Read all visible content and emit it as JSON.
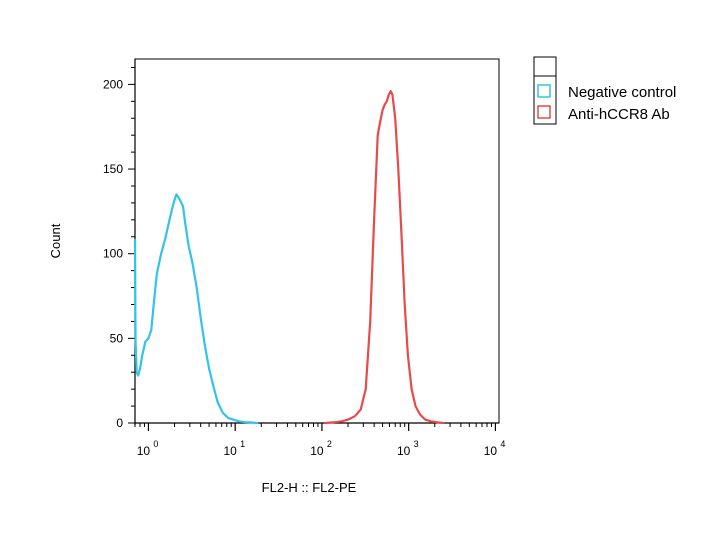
{
  "chart_data": {
    "type": "line",
    "xlabel": "FL2-H :: FL2-PE",
    "ylabel": "Count",
    "x_scale": "log",
    "xlim": [
      0.7,
      11000
    ],
    "ylim": [
      0,
      215
    ],
    "y_ticks": [
      0,
      50,
      100,
      150,
      200
    ],
    "x_ticks": [
      {
        "value": 1,
        "base": "10",
        "exp": "0"
      },
      {
        "value": 10,
        "base": "10",
        "exp": "1"
      },
      {
        "value": 100,
        "base": "10",
        "exp": "2"
      },
      {
        "value": 1000,
        "base": "10",
        "exp": "3"
      },
      {
        "value": 10000,
        "base": "10",
        "exp": "4"
      }
    ],
    "grid": false,
    "legend_position": "right",
    "series": [
      {
        "name": "Negative control",
        "color": "#33c3e8",
        "x": [
          0.7,
          0.71,
          0.73,
          0.76,
          0.8,
          0.85,
          0.92,
          1.0,
          1.08,
          1.15,
          1.25,
          1.4,
          1.55,
          1.75,
          1.95,
          2.1,
          2.3,
          2.5,
          2.65,
          2.9,
          3.2,
          3.6,
          4.0,
          4.5,
          5.0,
          5.6,
          6.3,
          7.2,
          8.3,
          9.5,
          11.0,
          13.0,
          15.5,
          18.0
        ],
        "y": [
          108,
          50,
          30,
          28,
          32,
          40,
          48,
          50,
          55,
          70,
          88,
          100,
          108,
          120,
          130,
          135,
          132,
          128,
          118,
          105,
          95,
          80,
          62,
          45,
          32,
          22,
          12,
          6,
          3,
          2,
          1,
          0.5,
          0.3,
          0
        ]
      },
      {
        "name": "Anti-hCCR8 Ab",
        "color": "#e84a4a",
        "x": [
          110,
          140,
          170,
          200,
          240,
          280,
          320,
          360,
          400,
          440,
          470,
          500,
          530,
          560,
          590,
          620,
          650,
          700,
          760,
          830,
          900,
          980,
          1080,
          1200,
          1350,
          1550,
          1800,
          2100,
          2500
        ],
        "y": [
          0,
          0.5,
          1,
          2,
          4,
          8,
          20,
          60,
          120,
          170,
          178,
          185,
          188,
          190,
          194,
          196,
          194,
          180,
          150,
          110,
          70,
          40,
          20,
          10,
          5,
          2,
          1,
          0.5,
          0
        ]
      }
    ]
  }
}
